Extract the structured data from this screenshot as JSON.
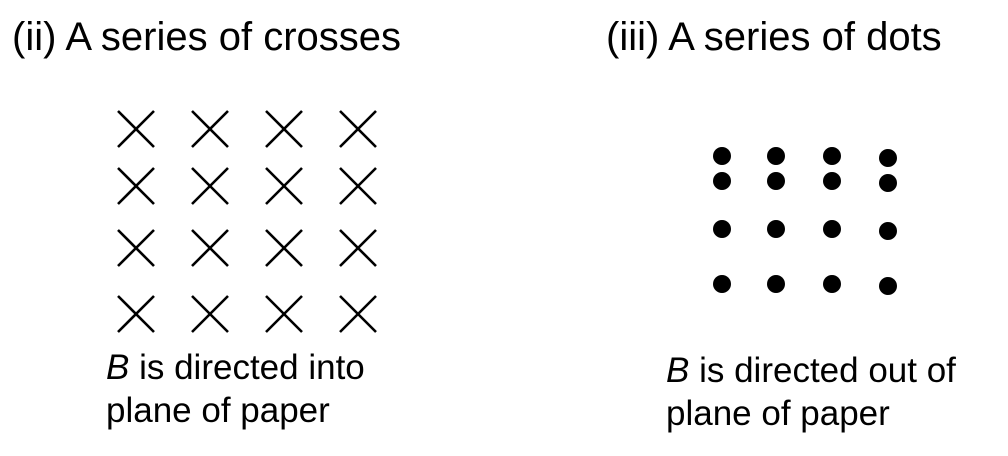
{
  "panels": [
    {
      "heading": "(ii) A series of crosses",
      "symbol": "cross-icon",
      "rows": 4,
      "cols": 4,
      "caption_var": "B",
      "caption_line1_rest": " is directed into",
      "caption_line2": "plane of paper"
    },
    {
      "heading": "(iii) A series of dots",
      "symbol": "dot-icon",
      "rows": 4,
      "cols": 4,
      "caption_var": "B",
      "caption_line1_rest": " is directed out of",
      "caption_line2": "plane of paper"
    }
  ],
  "colors": {
    "ink": "#000000",
    "background": "#ffffff"
  }
}
